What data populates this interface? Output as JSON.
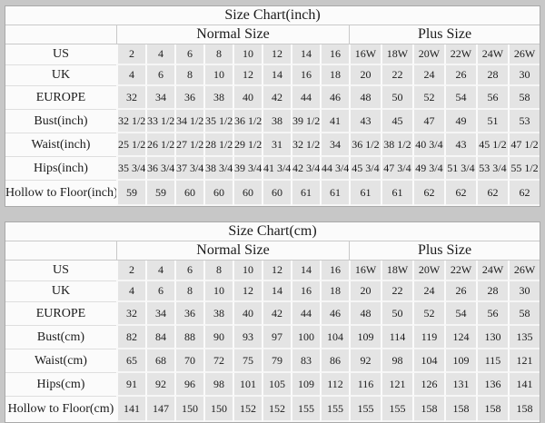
{
  "page": {
    "background": "#c7c7c7"
  },
  "colors": {
    "table_background": "#fbfbfb",
    "data_cell_background": "#e4e4e4",
    "outer_border": "#a9a9a9",
    "header_rule": "#c9c9c9",
    "row_rule": "#dedede",
    "text": "#1b1b1b"
  },
  "chart_data": [
    {
      "type": "table",
      "title": "Size Chart(inch)",
      "column_groups": [
        {
          "label": "Normal Size",
          "span": 8
        },
        {
          "label": "Plus Size",
          "span": 6
        }
      ],
      "rows": [
        {
          "label": "US",
          "values": [
            "2",
            "4",
            "6",
            "8",
            "10",
            "12",
            "14",
            "16",
            "16W",
            "18W",
            "20W",
            "22W",
            "24W",
            "26W"
          ]
        },
        {
          "label": "UK",
          "values": [
            "4",
            "6",
            "8",
            "10",
            "12",
            "14",
            "16",
            "18",
            "20",
            "22",
            "24",
            "26",
            "28",
            "30"
          ]
        },
        {
          "label": "EUROPE",
          "values": [
            "32",
            "34",
            "36",
            "38",
            "40",
            "42",
            "44",
            "46",
            "48",
            "50",
            "52",
            "54",
            "56",
            "58"
          ]
        },
        {
          "label": "Bust(inch)",
          "values": [
            "32 1/2",
            "33 1/2",
            "34 1/2",
            "35 1/2",
            "36 1/2",
            "38",
            "39 1/2",
            "41",
            "43",
            "45",
            "47",
            "49",
            "51",
            "53"
          ]
        },
        {
          "label": "Waist(inch)",
          "values": [
            "25 1/2",
            "26 1/2",
            "27 1/2",
            "28 1/2",
            "29 1/2",
            "31",
            "32 1/2",
            "34",
            "36 1/2",
            "38 1/2",
            "40 3/4",
            "43",
            "45 1/2",
            "47 1/2"
          ]
        },
        {
          "label": "Hips(inch)",
          "values": [
            "35 3/4",
            "36 3/4",
            "37 3/4",
            "38 3/4",
            "39 3/4",
            "41 3/4",
            "42 3/4",
            "44 3/4",
            "45 3/4",
            "47 3/4",
            "49 3/4",
            "51 3/4",
            "53 3/4",
            "55 1/2"
          ]
        },
        {
          "label": "Hollow to Floor(inch)",
          "values": [
            "59",
            "59",
            "60",
            "60",
            "60",
            "60",
            "61",
            "61",
            "61",
            "61",
            "62",
            "62",
            "62",
            "62"
          ]
        }
      ]
    },
    {
      "type": "table",
      "title": "Size Chart(cm)",
      "column_groups": [
        {
          "label": "Normal Size",
          "span": 8
        },
        {
          "label": "Plus Size",
          "span": 6
        }
      ],
      "rows": [
        {
          "label": "US",
          "values": [
            "2",
            "4",
            "6",
            "8",
            "10",
            "12",
            "14",
            "16",
            "16W",
            "18W",
            "20W",
            "22W",
            "24W",
            "26W"
          ]
        },
        {
          "label": "UK",
          "values": [
            "4",
            "6",
            "8",
            "10",
            "12",
            "14",
            "16",
            "18",
            "20",
            "22",
            "24",
            "26",
            "28",
            "30"
          ]
        },
        {
          "label": "EUROPE",
          "values": [
            "32",
            "34",
            "36",
            "38",
            "40",
            "42",
            "44",
            "46",
            "48",
            "50",
            "52",
            "54",
            "56",
            "58"
          ]
        },
        {
          "label": "Bust(cm)",
          "values": [
            "82",
            "84",
            "88",
            "90",
            "93",
            "97",
            "100",
            "104",
            "109",
            "114",
            "119",
            "124",
            "130",
            "135"
          ]
        },
        {
          "label": "Waist(cm)",
          "values": [
            "65",
            "68",
            "70",
            "72",
            "75",
            "79",
            "83",
            "86",
            "92",
            "98",
            "104",
            "109",
            "115",
            "121"
          ]
        },
        {
          "label": "Hips(cm)",
          "values": [
            "91",
            "92",
            "96",
            "98",
            "101",
            "105",
            "109",
            "112",
            "116",
            "121",
            "126",
            "131",
            "136",
            "141"
          ]
        },
        {
          "label": "Hollow to Floor(cm)",
          "values": [
            "141",
            "147",
            "150",
            "150",
            "152",
            "152",
            "155",
            "155",
            "155",
            "155",
            "158",
            "158",
            "158",
            "158"
          ]
        }
      ]
    }
  ]
}
